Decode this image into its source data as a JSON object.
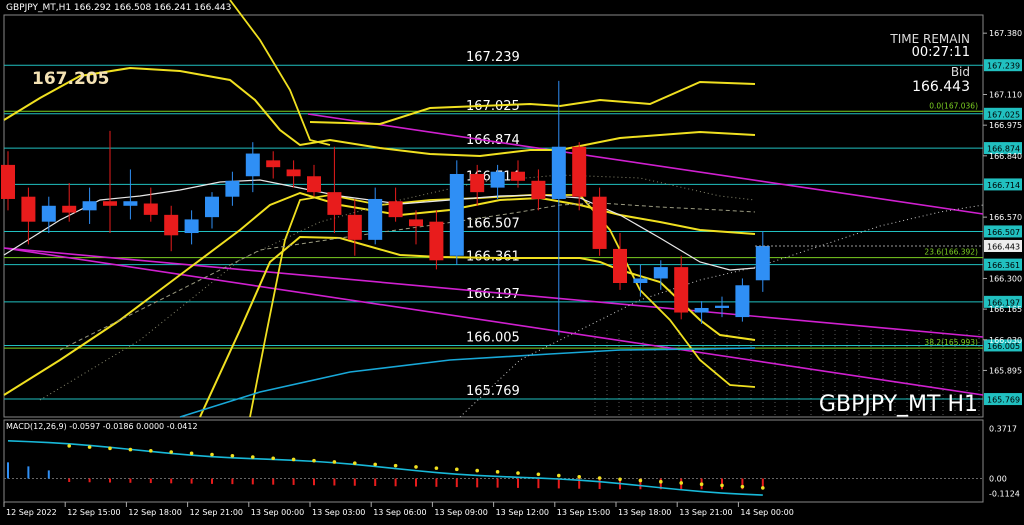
{
  "header": {
    "symbol_info": "GBPJPY_MT,H1  166.292 166.508 166.241 166.443",
    "big_price": "167.205",
    "time_remain_label": "TIME REMAIN",
    "time_remain_value": "00:27:11",
    "bid_label": "Bid",
    "bid_value": "166.443",
    "watermark": "GBPJPY_MT H1"
  },
  "colors": {
    "background": "#000000",
    "bull": "#2f8ff5",
    "bear": "#e81c1c",
    "level_line": "#21c0c0",
    "band": "#f0e020",
    "channel": "#d020d0",
    "ma_cyan": "#18a8d8",
    "ma_white": "#e8e8e8",
    "fibo": "#7ccf22",
    "macd_line": "#18b8d8",
    "macd_signal": "#f0e020",
    "macd_hist": "#e81c1c",
    "grid": "#5a5a5a"
  },
  "chart_data": {
    "type": "candlestick",
    "symbol": "GBPJPY_MT",
    "timeframe": "H1",
    "ylim": [
      165.69,
      167.46
    ],
    "price_ticks": [
      "167.380",
      "167.110",
      "166.975",
      "166.840",
      "166.570",
      "166.300",
      "166.165",
      "166.030",
      "165.895"
    ],
    "x_labels": [
      "12 Sep 2022",
      "12 Sep 15:00",
      "12 Sep 18:00",
      "12 Sep 21:00",
      "13 Sep 00:00",
      "13 Sep 03:00",
      "13 Sep 06:00",
      "13 Sep 09:00",
      "13 Sep 12:00",
      "13 Sep 15:00",
      "13 Sep 18:00",
      "13 Sep 21:00",
      "14 Sep 00:00"
    ],
    "levels": [
      {
        "label": "167.239",
        "value": 167.239,
        "tag": "167.239"
      },
      {
        "label": "167.025",
        "value": 167.025,
        "tag": "167.025"
      },
      {
        "label": "166.874",
        "value": 166.874,
        "tag": "166.874"
      },
      {
        "label": "166.714",
        "value": 166.714,
        "tag": "166.714"
      },
      {
        "label": "166.507",
        "value": 166.507,
        "tag": "166.507"
      },
      {
        "label": "166.361",
        "value": 166.361,
        "tag": "166.361"
      },
      {
        "label": "166.197",
        "value": 166.197,
        "tag": "166.197"
      },
      {
        "label": "166.005",
        "value": 166.005,
        "tag": "166.005"
      },
      {
        "label": "165.769",
        "value": 165.769,
        "tag": "165.769"
      }
    ],
    "current_price": {
      "value": 166.443,
      "tag": "166.443"
    },
    "fibo": [
      {
        "label": "0.0(167.036)",
        "value": 167.036
      },
      {
        "label": "23.6(166.392)",
        "value": 166.392
      },
      {
        "label": "38.2(165.993)",
        "value": 165.993
      }
    ],
    "candles": [
      {
        "o": 166.8,
        "h": 166.86,
        "l": 166.6,
        "c": 166.65
      },
      {
        "o": 166.66,
        "h": 166.7,
        "l": 166.45,
        "c": 166.55
      },
      {
        "o": 166.55,
        "h": 166.66,
        "l": 166.5,
        "c": 166.62
      },
      {
        "o": 166.62,
        "h": 166.72,
        "l": 166.55,
        "c": 166.59
      },
      {
        "o": 166.6,
        "h": 166.7,
        "l": 166.54,
        "c": 166.64
      },
      {
        "o": 166.64,
        "h": 166.95,
        "l": 166.5,
        "c": 166.62
      },
      {
        "o": 166.62,
        "h": 166.78,
        "l": 166.56,
        "c": 166.64
      },
      {
        "o": 166.63,
        "h": 166.7,
        "l": 166.55,
        "c": 166.58
      },
      {
        "o": 166.58,
        "h": 166.62,
        "l": 166.42,
        "c": 166.49
      },
      {
        "o": 166.5,
        "h": 166.6,
        "l": 166.45,
        "c": 166.56
      },
      {
        "o": 166.57,
        "h": 166.68,
        "l": 166.52,
        "c": 166.66
      },
      {
        "o": 166.66,
        "h": 166.77,
        "l": 166.62,
        "c": 166.73
      },
      {
        "o": 166.75,
        "h": 166.9,
        "l": 166.68,
        "c": 166.85
      },
      {
        "o": 166.82,
        "h": 166.86,
        "l": 166.74,
        "c": 166.79
      },
      {
        "o": 166.78,
        "h": 166.82,
        "l": 166.7,
        "c": 166.75
      },
      {
        "o": 166.75,
        "h": 166.8,
        "l": 166.66,
        "c": 166.68
      },
      {
        "o": 166.68,
        "h": 166.88,
        "l": 166.5,
        "c": 166.58
      },
      {
        "o": 166.58,
        "h": 166.65,
        "l": 166.4,
        "c": 166.47
      },
      {
        "o": 166.47,
        "h": 166.7,
        "l": 166.45,
        "c": 166.65
      },
      {
        "o": 166.64,
        "h": 166.7,
        "l": 166.55,
        "c": 166.57
      },
      {
        "o": 166.56,
        "h": 166.6,
        "l": 166.45,
        "c": 166.53
      },
      {
        "o": 166.55,
        "h": 166.6,
        "l": 166.34,
        "c": 166.38
      },
      {
        "o": 166.4,
        "h": 166.82,
        "l": 166.36,
        "c": 166.76
      },
      {
        "o": 166.76,
        "h": 166.8,
        "l": 166.62,
        "c": 166.68
      },
      {
        "o": 166.7,
        "h": 166.8,
        "l": 166.65,
        "c": 166.77
      },
      {
        "o": 166.77,
        "h": 166.82,
        "l": 166.7,
        "c": 166.73
      },
      {
        "o": 166.73,
        "h": 166.78,
        "l": 166.6,
        "c": 166.65
      },
      {
        "o": 166.65,
        "h": 167.17,
        "l": 166.05,
        "c": 166.88
      },
      {
        "o": 166.88,
        "h": 166.9,
        "l": 166.6,
        "c": 166.66
      },
      {
        "o": 166.66,
        "h": 166.7,
        "l": 166.4,
        "c": 166.43
      },
      {
        "o": 166.43,
        "h": 166.5,
        "l": 166.25,
        "c": 166.28
      },
      {
        "o": 166.28,
        "h": 166.36,
        "l": 166.22,
        "c": 166.3
      },
      {
        "o": 166.3,
        "h": 166.38,
        "l": 166.25,
        "c": 166.35
      },
      {
        "o": 166.35,
        "h": 166.4,
        "l": 166.12,
        "c": 166.15
      },
      {
        "o": 166.15,
        "h": 166.2,
        "l": 166.1,
        "c": 166.17
      },
      {
        "o": 166.17,
        "h": 166.22,
        "l": 166.13,
        "c": 166.18
      },
      {
        "o": 166.13,
        "h": 166.3,
        "l": 166.11,
        "c": 166.27
      },
      {
        "o": 166.292,
        "h": 166.508,
        "l": 166.241,
        "c": 166.443
      }
    ],
    "macd": {
      "label": "MACD(12,26,9) -0.0597 -0.0186 0.0000 -0.0412",
      "ylim": [
        -0.16,
        0.42
      ],
      "ticks": [
        "0.3717",
        "0.00",
        "-0.1124"
      ]
    }
  }
}
